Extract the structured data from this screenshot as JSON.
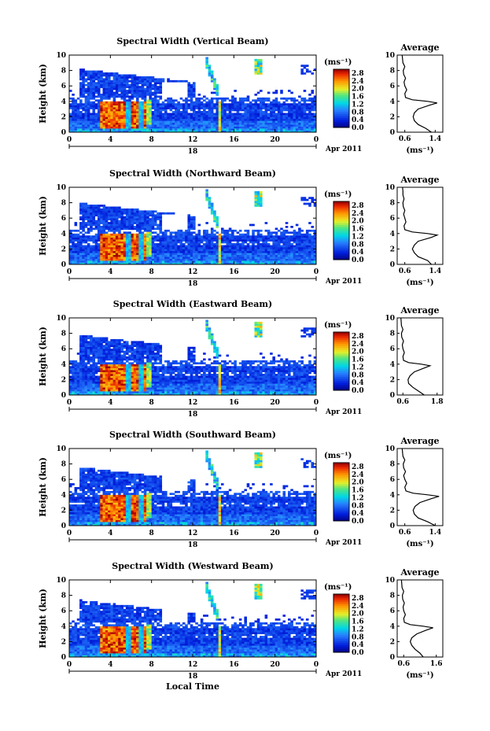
{
  "chart_data": [
    {
      "type": "heatmap",
      "title": "Spectral Width (Vertical Beam)",
      "ylabel": "Height (km)",
      "x_ticks": [
        "0",
        "4",
        "8",
        "12",
        "16",
        "20",
        "0"
      ],
      "y_ticks": [
        "0",
        "2",
        "4",
        "6",
        "8",
        "10"
      ],
      "xlim": [
        0,
        24
      ],
      "ylim": [
        0,
        10
      ],
      "date_label": "18",
      "month_label": "Apr 2011",
      "colorbar": {
        "unit": "(ms⁻¹)",
        "ticks": [
          "0.0",
          "0.4",
          "0.8",
          "1.2",
          "1.6",
          "2.0",
          "2.4",
          "2.8"
        ],
        "range": [
          0,
          3.0
        ]
      },
      "profile": {
        "title": "Average",
        "xlabel": "(ms⁻¹)",
        "x_ticks": [
          "0.6",
          "1.4"
        ],
        "xlim": [
          0.4,
          1.6
        ],
        "y_ticks": [
          "0",
          "2",
          "4",
          "6",
          "8",
          "10"
        ],
        "heights": [
          0,
          0.5,
          1,
          1.5,
          2,
          2.5,
          3,
          3.5,
          3.8,
          4.0,
          4.2,
          4.5,
          5,
          5.5,
          6,
          6.5,
          7,
          7.5,
          8,
          8.5,
          9,
          9.5,
          10
        ],
        "values": [
          1.3,
          1.15,
          0.95,
          0.85,
          0.82,
          0.85,
          0.95,
          1.25,
          1.45,
          1.2,
          0.8,
          0.62,
          0.6,
          0.65,
          0.6,
          0.58,
          0.62,
          0.57,
          0.56,
          0.6,
          0.55,
          0.54,
          0.53
        ]
      }
    },
    {
      "type": "heatmap",
      "title": "Spectral Width (Northward Beam)",
      "ylabel": "Height (km)",
      "x_ticks": [
        "0",
        "4",
        "8",
        "12",
        "16",
        "20",
        "0"
      ],
      "y_ticks": [
        "0",
        "2",
        "4",
        "6",
        "8",
        "10"
      ],
      "xlim": [
        0,
        24
      ],
      "ylim": [
        0,
        10
      ],
      "date_label": "18",
      "month_label": "Apr 2011",
      "colorbar": {
        "unit": "(ms⁻¹)",
        "ticks": [
          "0.0",
          "0.4",
          "0.8",
          "1.2",
          "1.6",
          "2.0",
          "2.4",
          "2.8"
        ],
        "range": [
          0,
          3.0
        ]
      },
      "profile": {
        "title": "Average",
        "xlabel": "(ms⁻¹)",
        "x_ticks": [
          "0.6",
          "1.4"
        ],
        "xlim": [
          0.4,
          1.6
        ],
        "y_ticks": [
          "0",
          "2",
          "4",
          "6",
          "8",
          "10"
        ],
        "heights": [
          0,
          0.5,
          1,
          1.5,
          2,
          2.5,
          3,
          3.5,
          3.8,
          4.0,
          4.2,
          4.5,
          5,
          5.5,
          6,
          6.5,
          7,
          7.5,
          8,
          8.5,
          9,
          9.5,
          10
        ],
        "values": [
          1.3,
          1.2,
          0.95,
          0.85,
          0.8,
          0.85,
          0.95,
          1.3,
          1.45,
          1.2,
          0.8,
          0.6,
          0.58,
          0.63,
          0.6,
          0.57,
          0.6,
          0.56,
          0.55,
          0.58,
          0.55,
          0.55,
          0.54
        ]
      }
    },
    {
      "type": "heatmap",
      "title": "Spectral Width (Eastward Beam)",
      "ylabel": "Height (km)",
      "x_ticks": [
        "0",
        "4",
        "8",
        "12",
        "16",
        "20",
        "0"
      ],
      "y_ticks": [
        "0",
        "2",
        "4",
        "6",
        "8",
        "10"
      ],
      "xlim": [
        0,
        24
      ],
      "ylim": [
        0,
        10
      ],
      "date_label": "18",
      "month_label": "Apr 2011",
      "colorbar": {
        "unit": "(ms⁻¹)",
        "ticks": [
          "0.0",
          "0.4",
          "0.8",
          "1.2",
          "1.6",
          "2.0",
          "2.4",
          "2.8"
        ],
        "range": [
          0,
          3.0
        ]
      },
      "profile": {
        "title": "Average",
        "xlabel": "",
        "x_ticks": [
          "0.6",
          "1.8"
        ],
        "xlim": [
          0.4,
          2.0
        ],
        "y_ticks": [
          "0",
          "2",
          "4",
          "6",
          "8",
          "10"
        ],
        "heights": [
          0,
          0.5,
          1,
          1.5,
          2,
          2.5,
          3,
          3.5,
          3.8,
          4.0,
          4.2,
          4.5,
          5,
          5.5,
          6,
          6.5,
          7,
          7.5,
          8,
          8.5,
          9,
          9.5,
          10
        ],
        "values": [
          1.35,
          1.15,
          0.95,
          0.8,
          0.78,
          0.85,
          1.0,
          1.35,
          1.55,
          1.25,
          0.8,
          0.62,
          0.6,
          0.65,
          0.6,
          0.58,
          0.62,
          0.56,
          0.55,
          0.6,
          0.55,
          0.54,
          0.53
        ]
      }
    },
    {
      "type": "heatmap",
      "title": "Spectral Width (Southward Beam)",
      "ylabel": "Height (km)",
      "x_ticks": [
        "0",
        "4",
        "8",
        "12",
        "16",
        "20",
        "0"
      ],
      "y_ticks": [
        "0",
        "2",
        "4",
        "6",
        "8",
        "10"
      ],
      "xlim": [
        0,
        24
      ],
      "ylim": [
        0,
        10
      ],
      "date_label": "18",
      "month_label": "Apr 2011",
      "colorbar": {
        "unit": "(ms⁻¹)",
        "ticks": [
          "0.0",
          "0.4",
          "0.8",
          "1.2",
          "1.6",
          "2.0",
          "2.4",
          "2.8"
        ],
        "range": [
          0,
          3.0
        ]
      },
      "profile": {
        "title": "Average",
        "xlabel": "(ms⁻¹)",
        "x_ticks": [
          "0.6",
          "1.4"
        ],
        "xlim": [
          0.4,
          1.6
        ],
        "y_ticks": [
          "0",
          "2",
          "4",
          "6",
          "8",
          "10"
        ],
        "heights": [
          0,
          0.5,
          1,
          1.5,
          2,
          2.5,
          3,
          3.5,
          3.8,
          4.0,
          4.2,
          4.5,
          5,
          5.5,
          6,
          6.5,
          7,
          7.5,
          8,
          8.5,
          9,
          9.5,
          10
        ],
        "values": [
          1.4,
          1.2,
          0.95,
          0.85,
          0.82,
          0.87,
          1.0,
          1.3,
          1.5,
          1.2,
          0.82,
          0.63,
          0.6,
          0.65,
          0.6,
          0.57,
          0.62,
          0.57,
          0.56,
          0.6,
          0.55,
          0.54,
          0.53
        ]
      }
    },
    {
      "type": "heatmap",
      "title": "Spectral Width (Westward Beam)",
      "ylabel": "Height (km)",
      "xlabel": "Local Time",
      "x_ticks": [
        "0",
        "4",
        "8",
        "12",
        "16",
        "20",
        "0"
      ],
      "y_ticks": [
        "0",
        "2",
        "4",
        "6",
        "8",
        "10"
      ],
      "xlim": [
        0,
        24
      ],
      "ylim": [
        0,
        10
      ],
      "date_label": "18",
      "month_label": "Apr 2011",
      "colorbar": {
        "unit": "(ms⁻¹)",
        "ticks": [
          "0.0",
          "0.4",
          "0.8",
          "1.2",
          "1.6",
          "2.0",
          "2.4",
          "2.8"
        ],
        "range": [
          0,
          3.0
        ]
      },
      "profile": {
        "title": "Average",
        "xlabel": "(ms⁻¹)",
        "x_ticks": [
          "0.6",
          "1.6"
        ],
        "xlim": [
          0.4,
          1.8
        ],
        "y_ticks": [
          "0",
          "2",
          "4",
          "6",
          "8",
          "10"
        ],
        "heights": [
          0,
          0.5,
          1,
          1.5,
          2,
          2.5,
          3,
          3.5,
          3.8,
          4.0,
          4.2,
          4.5,
          5,
          5.5,
          6,
          6.5,
          7,
          7.5,
          8,
          8.5,
          9,
          9.5,
          10
        ],
        "values": [
          1.2,
          1.1,
          0.95,
          0.85,
          0.8,
          0.85,
          1.0,
          1.3,
          1.5,
          1.2,
          0.8,
          0.62,
          0.6,
          0.65,
          0.6,
          0.58,
          0.62,
          0.57,
          0.56,
          0.6,
          0.55,
          0.54,
          0.53
        ]
      }
    }
  ]
}
